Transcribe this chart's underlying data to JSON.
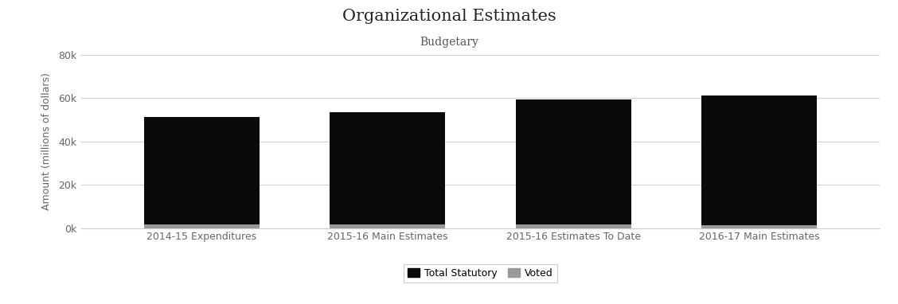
{
  "title": "Organizational Estimates",
  "subtitle": "Budgetary",
  "categories": [
    "2014-15 Expenditures",
    "2015-16 Main Estimates",
    "2015-16 Estimates To Date",
    "2016-17 Main Estimates"
  ],
  "statutory_values": [
    49500,
    52000,
    57800,
    59800
  ],
  "voted_values": [
    1800,
    1500,
    1600,
    1300
  ],
  "statutory_color": "#0a0a0a",
  "voted_color": "#999999",
  "background_color": "#ffffff",
  "ylabel": "Amount (millions of dollars)",
  "ylim": [
    0,
    80000
  ],
  "yticks": [
    0,
    20000,
    40000,
    60000,
    80000
  ],
  "ytick_labels": [
    "0k",
    "20k",
    "40k",
    "60k",
    "80k"
  ],
  "legend_labels": [
    "Total Statutory",
    "Voted"
  ],
  "title_fontsize": 15,
  "subtitle_fontsize": 10,
  "label_fontsize": 9,
  "tick_fontsize": 9,
  "bar_width": 0.62,
  "grid_color": "#d0d0d0"
}
